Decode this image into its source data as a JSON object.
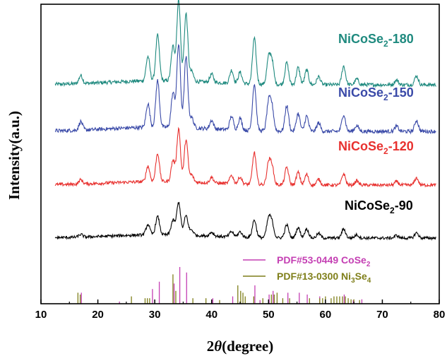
{
  "chart_data": {
    "type": "line",
    "title": "",
    "xlabel_prefix": "2",
    "xlabel_symbol": "θ",
    "xlabel_suffix": "(degree)",
    "ylabel": "Intensity(a.u.)",
    "xlim": [
      10,
      80
    ],
    "xticks": [
      10,
      20,
      30,
      40,
      50,
      60,
      70,
      80
    ],
    "y_ticks_shown": false,
    "grid": false,
    "series": [
      {
        "name_prefix": "NiCoSe",
        "name_sub": "2",
        "name_suffix": "-180",
        "color": "#1f8a7f",
        "peaks": [
          [
            17.0,
            0.1
          ],
          [
            28.8,
            0.3
          ],
          [
            30.5,
            0.56
          ],
          [
            33.2,
            0.42
          ],
          [
            34.2,
            1.0
          ],
          [
            35.5,
            0.83
          ],
          [
            36.5,
            0.12
          ],
          [
            40.0,
            0.1
          ],
          [
            43.5,
            0.16
          ],
          [
            45.0,
            0.14
          ],
          [
            47.5,
            0.56
          ],
          [
            50.0,
            0.31
          ],
          [
            50.6,
            0.28
          ],
          [
            53.2,
            0.27
          ],
          [
            55.2,
            0.21
          ],
          [
            56.7,
            0.18
          ],
          [
            58.8,
            0.1
          ],
          [
            63.2,
            0.23
          ],
          [
            65.5,
            0.07
          ],
          [
            72.5,
            0.06
          ],
          [
            76.0,
            0.11
          ]
        ]
      },
      {
        "name_prefix": "NiCoSe",
        "name_sub": "2",
        "name_suffix": "-150",
        "color": "#3a4aa8",
        "peaks": [
          [
            17.0,
            0.1
          ],
          [
            28.8,
            0.28
          ],
          [
            30.5,
            0.55
          ],
          [
            33.2,
            0.4
          ],
          [
            34.2,
            0.98
          ],
          [
            35.5,
            0.83
          ],
          [
            36.5,
            0.12
          ],
          [
            40.0,
            0.1
          ],
          [
            43.5,
            0.16
          ],
          [
            45.0,
            0.14
          ],
          [
            47.5,
            0.55
          ],
          [
            50.0,
            0.33
          ],
          [
            50.6,
            0.28
          ],
          [
            53.2,
            0.3
          ],
          [
            55.2,
            0.21
          ],
          [
            56.7,
            0.18
          ],
          [
            58.8,
            0.1
          ],
          [
            63.2,
            0.2
          ],
          [
            65.5,
            0.07
          ],
          [
            72.5,
            0.06
          ],
          [
            76.0,
            0.13
          ]
        ]
      },
      {
        "name_prefix": "NiCoSe",
        "name_sub": "2",
        "name_suffix": "-120",
        "color": "#e8312f",
        "peaks": [
          [
            17.0,
            0.06
          ],
          [
            28.8,
            0.22
          ],
          [
            30.5,
            0.4
          ],
          [
            33.2,
            0.3
          ],
          [
            34.2,
            0.75
          ],
          [
            35.5,
            0.6
          ],
          [
            36.5,
            0.1
          ],
          [
            40.0,
            0.08
          ],
          [
            43.5,
            0.12
          ],
          [
            45.0,
            0.1
          ],
          [
            47.5,
            0.45
          ],
          [
            50.0,
            0.3
          ],
          [
            50.6,
            0.26
          ],
          [
            53.2,
            0.25
          ],
          [
            55.2,
            0.18
          ],
          [
            56.7,
            0.15
          ],
          [
            58.8,
            0.08
          ],
          [
            63.2,
            0.16
          ],
          [
            65.5,
            0.06
          ],
          [
            72.5,
            0.05
          ],
          [
            76.0,
            0.1
          ]
        ]
      },
      {
        "name_prefix": "NiCoSe",
        "name_sub": "2",
        "name_suffix": "-90",
        "color": "#000000",
        "peaks": [
          [
            17.0,
            0.04
          ],
          [
            28.8,
            0.16
          ],
          [
            30.5,
            0.28
          ],
          [
            33.2,
            0.22
          ],
          [
            34.2,
            0.5
          ],
          [
            35.5,
            0.3
          ],
          [
            36.5,
            0.08
          ],
          [
            40.0,
            0.06
          ],
          [
            43.5,
            0.08
          ],
          [
            45.0,
            0.08
          ],
          [
            47.5,
            0.27
          ],
          [
            50.0,
            0.28
          ],
          [
            50.6,
            0.22
          ],
          [
            53.2,
            0.2
          ],
          [
            55.2,
            0.16
          ],
          [
            56.7,
            0.14
          ],
          [
            58.8,
            0.07
          ],
          [
            63.2,
            0.14
          ],
          [
            65.5,
            0.05
          ],
          [
            72.5,
            0.04
          ],
          [
            76.0,
            0.08
          ]
        ]
      }
    ],
    "reference_patterns": [
      {
        "name_prefix": "PDF#53-0449 CoSe",
        "name_sub": "2",
        "name_suffix": "",
        "color": "#c43fb3",
        "lines": [
          [
            17.1,
            0.3
          ],
          [
            23.8,
            0.06
          ],
          [
            29.6,
            0.4
          ],
          [
            30.8,
            0.6
          ],
          [
            33.4,
            0.55
          ],
          [
            34.4,
            1.0
          ],
          [
            35.6,
            0.85
          ],
          [
            40.2,
            0.15
          ],
          [
            43.7,
            0.2
          ],
          [
            47.6,
            0.5
          ],
          [
            48.5,
            0.1
          ],
          [
            50.1,
            0.25
          ],
          [
            50.8,
            0.35
          ],
          [
            53.4,
            0.3
          ],
          [
            55.4,
            0.3
          ],
          [
            56.8,
            0.25
          ],
          [
            59.0,
            0.2
          ],
          [
            63.3,
            0.25
          ],
          [
            64.9,
            0.1
          ],
          [
            66.4,
            0.12
          ]
        ]
      },
      {
        "name_prefix": "PDF#13-0300 Ni",
        "name_sub": "3",
        "name_suffix": "Se",
        "name_sub2": "4",
        "color": "#7f7f1a",
        "lines": [
          [
            16.5,
            0.3
          ],
          [
            16.9,
            0.25
          ],
          [
            25.9,
            0.2
          ],
          [
            28.3,
            0.15
          ],
          [
            28.7,
            0.15
          ],
          [
            29.1,
            0.15
          ],
          [
            33.2,
            0.8
          ],
          [
            33.7,
            0.35
          ],
          [
            36.7,
            0.15
          ],
          [
            39.0,
            0.15
          ],
          [
            41.4,
            0.1
          ],
          [
            44.6,
            0.5
          ],
          [
            45.1,
            0.35
          ],
          [
            45.5,
            0.3
          ],
          [
            45.9,
            0.2
          ],
          [
            47.4,
            0.2
          ],
          [
            49.0,
            0.15
          ],
          [
            50.5,
            0.25
          ],
          [
            51.0,
            0.25
          ],
          [
            51.5,
            0.3
          ],
          [
            52.5,
            0.15
          ],
          [
            53.7,
            0.15
          ],
          [
            57.2,
            0.15
          ],
          [
            59.0,
            0.15
          ],
          [
            59.5,
            0.15
          ],
          [
            60.0,
            0.2
          ],
          [
            61.0,
            0.15
          ],
          [
            61.5,
            0.2
          ],
          [
            62.0,
            0.2
          ],
          [
            62.5,
            0.2
          ],
          [
            63.0,
            0.2
          ],
          [
            63.5,
            0.2
          ],
          [
            64.0,
            0.15
          ],
          [
            64.5,
            0.12
          ],
          [
            65.0,
            0.12
          ],
          [
            66.0,
            0.1
          ]
        ]
      }
    ]
  }
}
